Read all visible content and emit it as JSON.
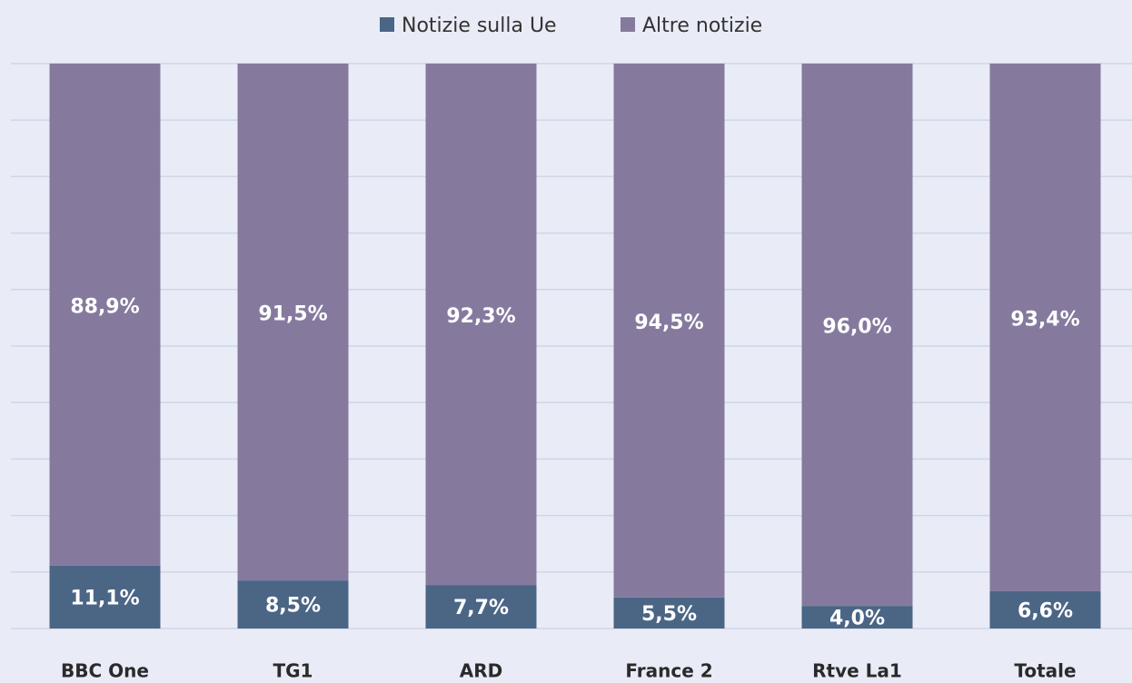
{
  "chart_data": {
    "type": "stacked_bar",
    "categories": [
      "BBC One",
      "TG1",
      "ARD",
      "France 2",
      "Rtve La1",
      "Totale"
    ],
    "series": [
      {
        "name": "Notizie sulla Ue",
        "color": "#4b6585",
        "values": [
          11.1,
          8.5,
          7.7,
          5.5,
          4.0,
          6.6
        ],
        "value_labels": [
          "11,1%",
          "8,5%",
          "7,7%",
          "5,5%",
          "4,0%",
          "6,6%"
        ]
      },
      {
        "name": "Altre notizie",
        "color": "#857a9e",
        "values": [
          88.9,
          91.5,
          92.3,
          94.5,
          96.0,
          93.4
        ],
        "value_labels": [
          "88,9%",
          "91,5%",
          "92,3%",
          "94,5%",
          "96,0%",
          "93,4%"
        ]
      }
    ],
    "ylim": [
      0,
      100
    ],
    "yticks": [
      0,
      10,
      20,
      30,
      40,
      50,
      60,
      70,
      80,
      90,
      100
    ],
    "grid": true,
    "legend": "top"
  }
}
